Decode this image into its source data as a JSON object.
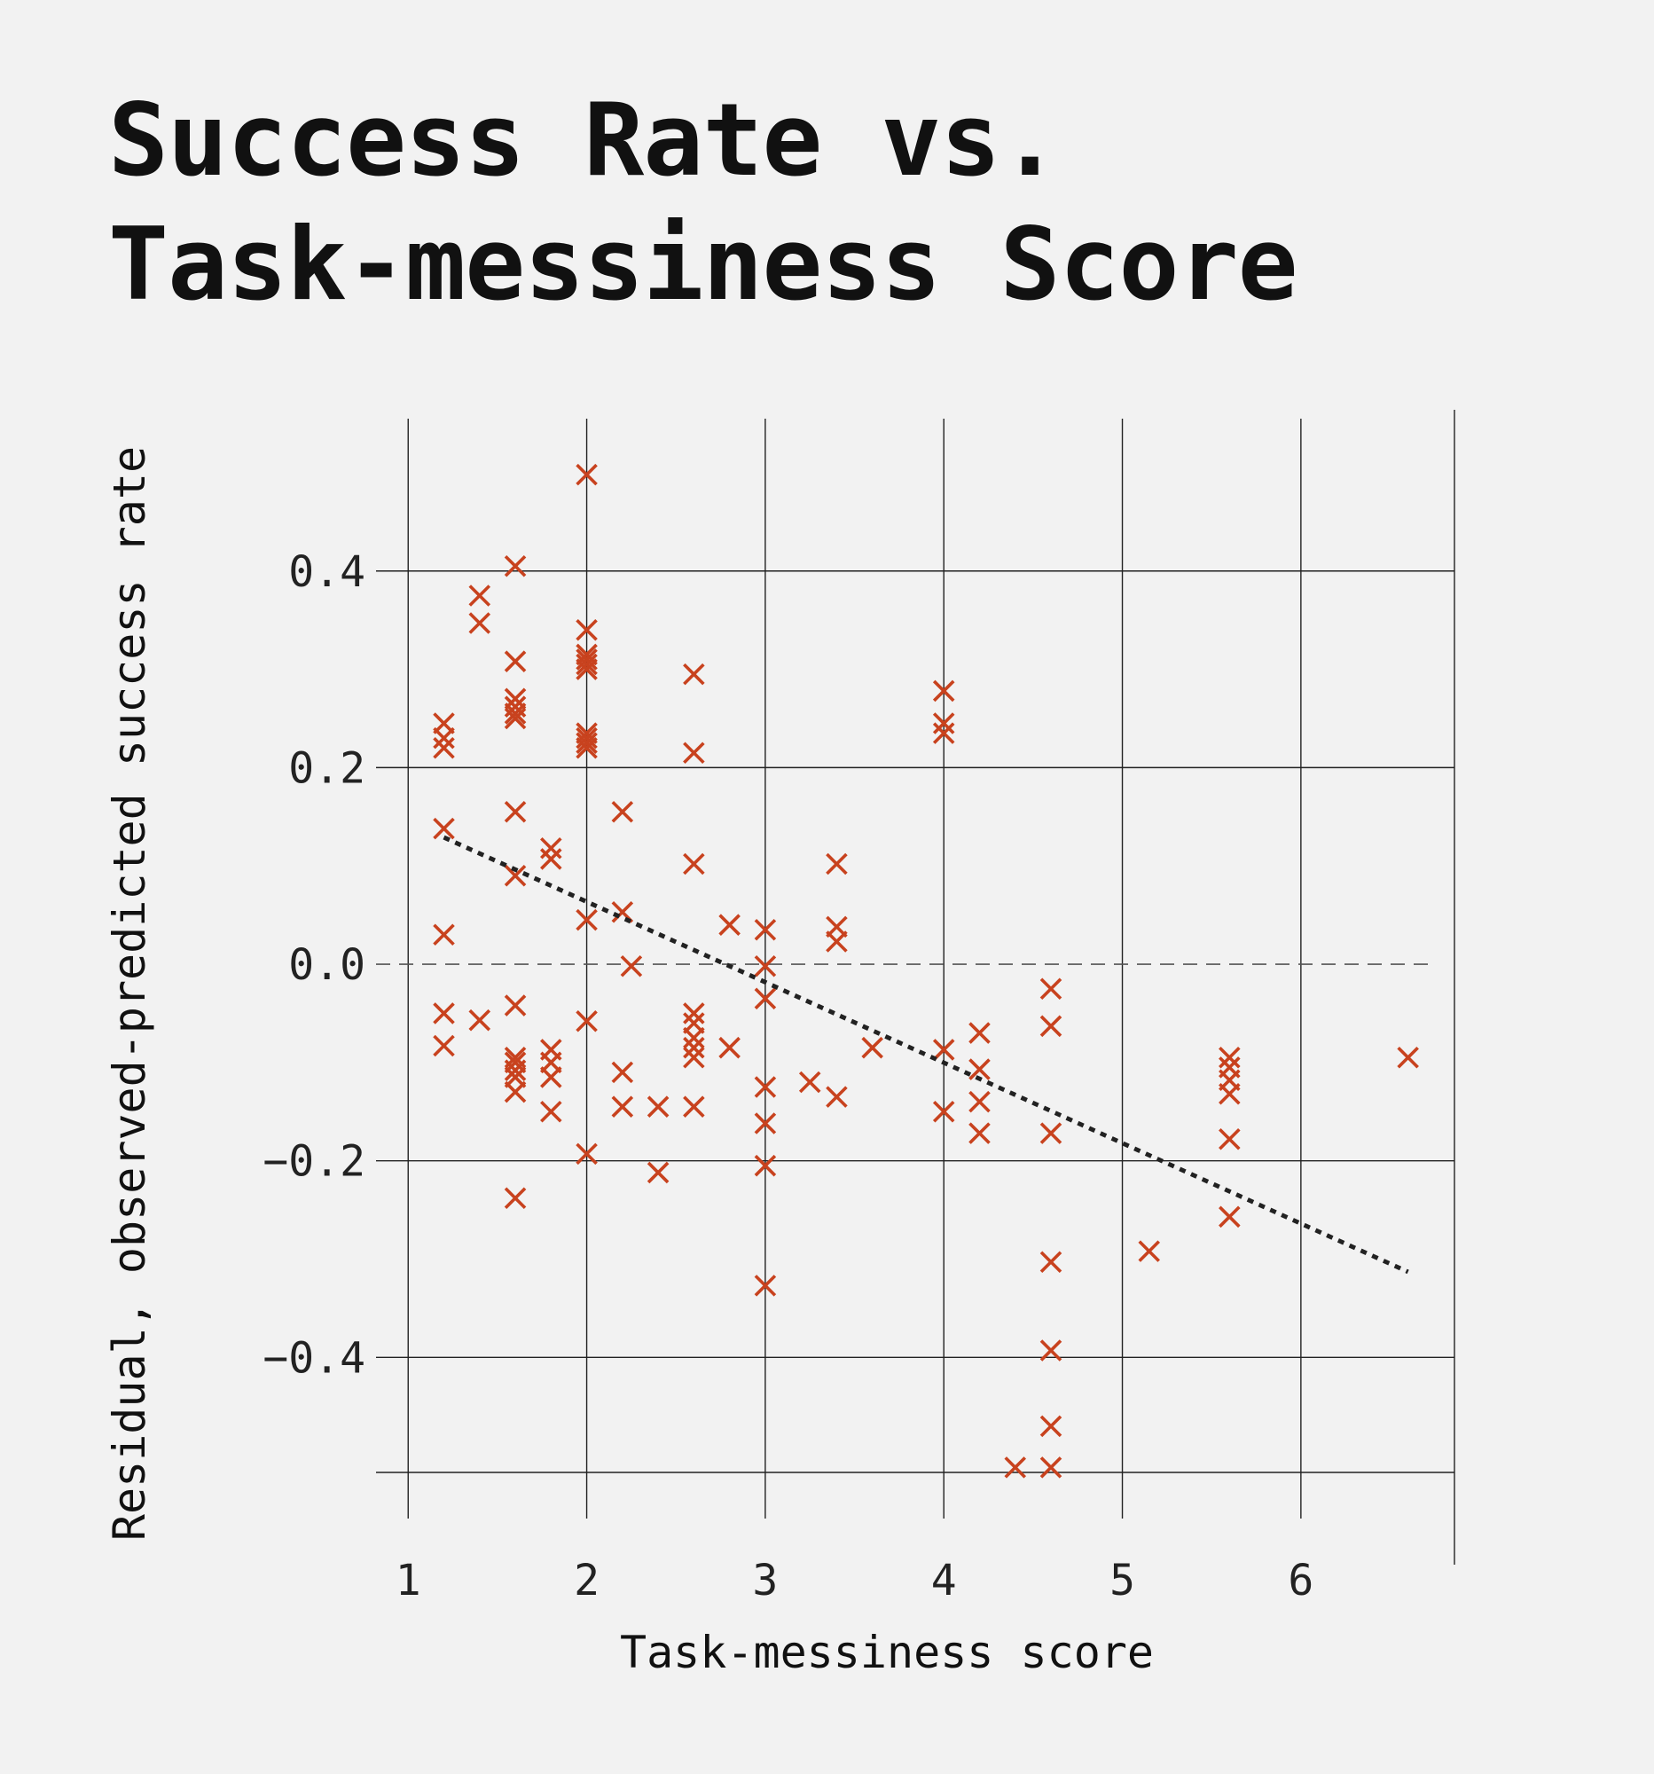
{
  "chart_data": {
    "type": "scatter",
    "title_lines": [
      "Success Rate vs.",
      "Task-messiness Score"
    ],
    "xlabel": "Task-messiness score",
    "ylabel": "Residual, observed-predicted success rate",
    "xlim": [
      0.82,
      6.86
    ],
    "ylim": [
      -0.564,
      0.555
    ],
    "x_ticks": [
      1,
      2,
      3,
      4,
      5,
      6
    ],
    "x_tick_labels": [
      "1",
      "2",
      "3",
      "4",
      "5",
      "6"
    ],
    "y_ticks": [
      -0.4,
      -0.2,
      0.0,
      0.2,
      0.4
    ],
    "y_tick_labels": [
      "−0.4",
      "−0.2",
      "0.0",
      "0.2",
      "0.4"
    ],
    "grid": true,
    "reference_line_y": 0.0,
    "marker": "x",
    "colors": {
      "points": "#c8421e",
      "trend": "#222222",
      "grid": "#222222",
      "background": "#f2f2f2"
    },
    "trend_line": {
      "style": "dotted",
      "x": [
        1.2,
        6.6
      ],
      "y": [
        0.129,
        -0.313
      ]
    },
    "points": [
      {
        "x": 1.2,
        "y": 0.245
      },
      {
        "x": 1.2,
        "y": 0.23
      },
      {
        "x": 1.2,
        "y": 0.22
      },
      {
        "x": 1.2,
        "y": 0.138
      },
      {
        "x": 1.2,
        "y": 0.03
      },
      {
        "x": 1.2,
        "y": -0.05
      },
      {
        "x": 1.2,
        "y": -0.083
      },
      {
        "x": 1.4,
        "y": 0.375
      },
      {
        "x": 1.4,
        "y": 0.347
      },
      {
        "x": 1.4,
        "y": -0.057
      },
      {
        "x": 1.6,
        "y": 0.405
      },
      {
        "x": 1.6,
        "y": 0.308
      },
      {
        "x": 1.6,
        "y": 0.27
      },
      {
        "x": 1.6,
        "y": 0.262
      },
      {
        "x": 1.6,
        "y": 0.255
      },
      {
        "x": 1.6,
        "y": 0.25
      },
      {
        "x": 1.6,
        "y": 0.155
      },
      {
        "x": 1.6,
        "y": 0.09
      },
      {
        "x": 1.6,
        "y": -0.042
      },
      {
        "x": 1.6,
        "y": -0.095
      },
      {
        "x": 1.6,
        "y": -0.1
      },
      {
        "x": 1.6,
        "y": -0.108
      },
      {
        "x": 1.6,
        "y": -0.115
      },
      {
        "x": 1.6,
        "y": -0.13
      },
      {
        "x": 1.6,
        "y": -0.238
      },
      {
        "x": 1.8,
        "y": 0.118
      },
      {
        "x": 1.8,
        "y": 0.107
      },
      {
        "x": 1.8,
        "y": -0.087
      },
      {
        "x": 1.8,
        "y": -0.1
      },
      {
        "x": 1.8,
        "y": -0.115
      },
      {
        "x": 1.8,
        "y": -0.15
      },
      {
        "x": 2.0,
        "y": 0.498
      },
      {
        "x": 2.0,
        "y": 0.34
      },
      {
        "x": 2.0,
        "y": 0.315
      },
      {
        "x": 2.0,
        "y": 0.31
      },
      {
        "x": 2.0,
        "y": 0.305
      },
      {
        "x": 2.0,
        "y": 0.3
      },
      {
        "x": 2.0,
        "y": 0.235
      },
      {
        "x": 2.0,
        "y": 0.23
      },
      {
        "x": 2.0,
        "y": 0.225
      },
      {
        "x": 2.0,
        "y": 0.22
      },
      {
        "x": 2.0,
        "y": 0.045
      },
      {
        "x": 2.0,
        "y": -0.058
      },
      {
        "x": 2.0,
        "y": -0.193
      },
      {
        "x": 2.2,
        "y": 0.155
      },
      {
        "x": 2.2,
        "y": 0.053
      },
      {
        "x": 2.2,
        "y": -0.11
      },
      {
        "x": 2.2,
        "y": -0.145
      },
      {
        "x": 2.25,
        "y": -0.002
      },
      {
        "x": 2.4,
        "y": -0.145
      },
      {
        "x": 2.4,
        "y": -0.212
      },
      {
        "x": 2.6,
        "y": 0.295
      },
      {
        "x": 2.6,
        "y": 0.215
      },
      {
        "x": 2.6,
        "y": 0.102
      },
      {
        "x": 2.6,
        "y": -0.05
      },
      {
        "x": 2.6,
        "y": -0.06
      },
      {
        "x": 2.6,
        "y": -0.075
      },
      {
        "x": 2.6,
        "y": -0.085
      },
      {
        "x": 2.6,
        "y": -0.095
      },
      {
        "x": 2.6,
        "y": -0.145
      },
      {
        "x": 2.8,
        "y": 0.04
      },
      {
        "x": 2.8,
        "y": -0.085
      },
      {
        "x": 3.0,
        "y": 0.035
      },
      {
        "x": 3.0,
        "y": -0.002
      },
      {
        "x": 3.0,
        "y": -0.035
      },
      {
        "x": 3.0,
        "y": -0.125
      },
      {
        "x": 3.0,
        "y": -0.162
      },
      {
        "x": 3.0,
        "y": -0.205
      },
      {
        "x": 3.0,
        "y": -0.327
      },
      {
        "x": 3.25,
        "y": -0.12
      },
      {
        "x": 3.4,
        "y": 0.102
      },
      {
        "x": 3.4,
        "y": 0.038
      },
      {
        "x": 3.4,
        "y": 0.023
      },
      {
        "x": 3.4,
        "y": -0.135
      },
      {
        "x": 3.6,
        "y": -0.085
      },
      {
        "x": 4.0,
        "y": 0.278
      },
      {
        "x": 4.0,
        "y": 0.245
      },
      {
        "x": 4.0,
        "y": 0.235
      },
      {
        "x": 4.0,
        "y": -0.087
      },
      {
        "x": 4.0,
        "y": -0.15
      },
      {
        "x": 4.2,
        "y": -0.07
      },
      {
        "x": 4.2,
        "y": -0.107
      },
      {
        "x": 4.2,
        "y": -0.14
      },
      {
        "x": 4.2,
        "y": -0.172
      },
      {
        "x": 4.4,
        "y": -0.512
      },
      {
        "x": 4.6,
        "y": -0.025
      },
      {
        "x": 4.6,
        "y": -0.063
      },
      {
        "x": 4.6,
        "y": -0.172
      },
      {
        "x": 4.6,
        "y": -0.303
      },
      {
        "x": 4.6,
        "y": -0.393
      },
      {
        "x": 4.6,
        "y": -0.47
      },
      {
        "x": 4.6,
        "y": -0.512
      },
      {
        "x": 5.15,
        "y": -0.292
      },
      {
        "x": 5.6,
        "y": -0.095
      },
      {
        "x": 5.6,
        "y": -0.105
      },
      {
        "x": 5.6,
        "y": -0.118
      },
      {
        "x": 5.6,
        "y": -0.132
      },
      {
        "x": 5.6,
        "y": -0.178
      },
      {
        "x": 5.6,
        "y": -0.257
      },
      {
        "x": 6.6,
        "y": -0.095
      }
    ]
  }
}
